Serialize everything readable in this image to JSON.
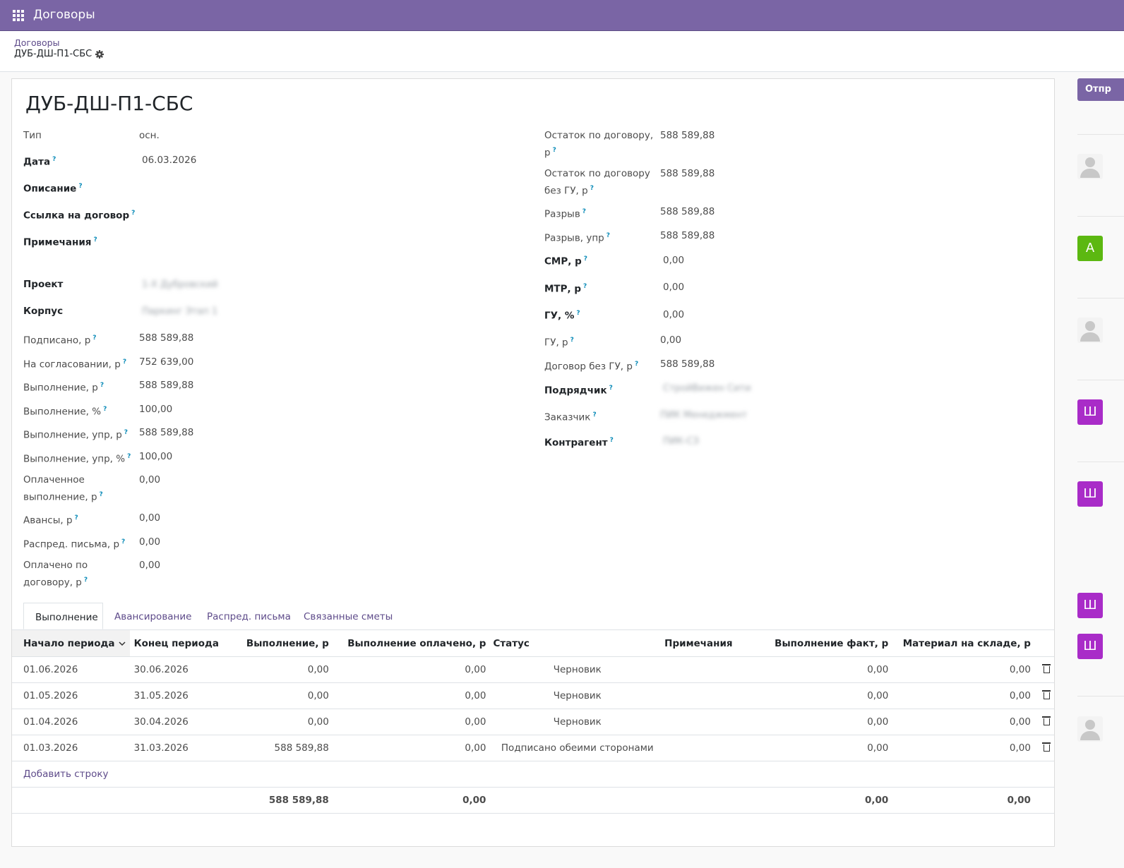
{
  "app": {
    "title": "Договоры"
  },
  "breadcrumb": {
    "parent": "Договоры",
    "current": "ДУБ-ДШ-П1-СБС"
  },
  "record": {
    "title": "ДУБ-ДШ-П1-СБС"
  },
  "left_fields": {
    "type": {
      "label": "Тип",
      "value": "осн."
    },
    "date": {
      "label": "Дата",
      "value": "06.03.2026"
    },
    "description": {
      "label": "Описание"
    },
    "contract_link": {
      "label": "Ссылка на договор"
    },
    "notes": {
      "label": "Примечания"
    },
    "project": {
      "label": "Проект",
      "value": "1-Х Дубровский"
    },
    "building": {
      "label": "Корпус",
      "value": "Паркинг Этап 1"
    },
    "signed": {
      "label": "Подписано, р",
      "value": "588 589,88"
    },
    "approval": {
      "label": "На согласовании, р",
      "value": "752 639,00"
    },
    "execution": {
      "label": "Выполнение, р",
      "value": "588 589,88"
    },
    "execution_pct": {
      "label": "Выполнение, %",
      "value": "100,00"
    },
    "execution_mgmt": {
      "label": "Выполнение, упр, р",
      "value": "588 589,88"
    },
    "execution_mgmt_pct": {
      "label": "Выполнение, упр, %",
      "value": "100,00"
    },
    "paid_execution": {
      "label_1": "Оплаченное",
      "label_2": "выполнение, р",
      "value": "0,00"
    },
    "advances": {
      "label": "Авансы, р",
      "value": "0,00"
    },
    "dist_letters": {
      "label": "Распред. письма, р",
      "value": "0,00"
    },
    "paid_contract": {
      "label_1": "Оплачено по",
      "label_2": "договору, р",
      "value": "0,00"
    }
  },
  "right_fields": {
    "balance": {
      "label_1": "Остаток по договору,",
      "label_2": "р",
      "value": "588 589,88"
    },
    "balance_no_gu": {
      "label_1": "Остаток по договору",
      "label_2": "без ГУ, р",
      "value": "588 589,88"
    },
    "gap": {
      "label": "Разрыв",
      "value": "588 589,88"
    },
    "gap_mgmt": {
      "label": "Разрыв, упр",
      "value": "588 589,88"
    },
    "smr": {
      "label": "СМР, р",
      "value": "0,00"
    },
    "mtr": {
      "label": "МТР, р",
      "value": "0,00"
    },
    "gu_pct": {
      "label": "ГУ, %",
      "value": "0,00"
    },
    "gu_rub": {
      "label": "ГУ, р",
      "value": "0,00"
    },
    "contract_no_gu": {
      "label": "Договор без ГУ, р",
      "value": "588 589,88"
    },
    "contractor": {
      "label": "Подрядчик",
      "value": "СтройВижен Сити"
    },
    "customer": {
      "label": "Заказчик",
      "value": "ПИК Менеджмент"
    },
    "counterparty": {
      "label": "Контрагент",
      "value": "ПИК-СЗ"
    }
  },
  "tabs": [
    "Выполнение",
    "Авансирование",
    "Распред. письма",
    "Связанные сметы"
  ],
  "table": {
    "columns": [
      "Начало периода",
      "Конец периода",
      "Выполнение, р",
      "Выполнение оплачено, р",
      "Статус",
      "Примечания",
      "Выполнение факт, р",
      "Материал на складе, р"
    ],
    "rows": [
      {
        "start": "01.06.2026",
        "end": "30.06.2026",
        "exec": "0,00",
        "paid": "0,00",
        "status": "Черновик",
        "notes": "",
        "fact": "0,00",
        "stock": "0,00"
      },
      {
        "start": "01.05.2026",
        "end": "31.05.2026",
        "exec": "0,00",
        "paid": "0,00",
        "status": "Черновик",
        "notes": "",
        "fact": "0,00",
        "stock": "0,00"
      },
      {
        "start": "01.04.2026",
        "end": "30.04.2026",
        "exec": "0,00",
        "paid": "0,00",
        "status": "Черновик",
        "notes": "",
        "fact": "0,00",
        "stock": "0,00"
      },
      {
        "start": "01.03.2026",
        "end": "31.03.2026",
        "exec": "588 589,88",
        "paid": "0,00",
        "status": "Подписано обеими сторонами",
        "notes": "",
        "fact": "0,00",
        "stock": "0,00"
      }
    ],
    "add_line": "Добавить строку",
    "totals": {
      "exec": "588 589,88",
      "paid": "0,00",
      "fact": "0,00",
      "stock": "0,00"
    }
  },
  "chatter": {
    "send_label": "Отпр",
    "avatars": [
      "",
      "А",
      "",
      "Ш",
      "Ш",
      "Ш",
      "Ш",
      ""
    ]
  },
  "colors": {
    "brand": "#7a65a5",
    "avatar_green": "#5cb811",
    "avatar_purple": "#a92cc8",
    "status_signed": "#28a745"
  }
}
